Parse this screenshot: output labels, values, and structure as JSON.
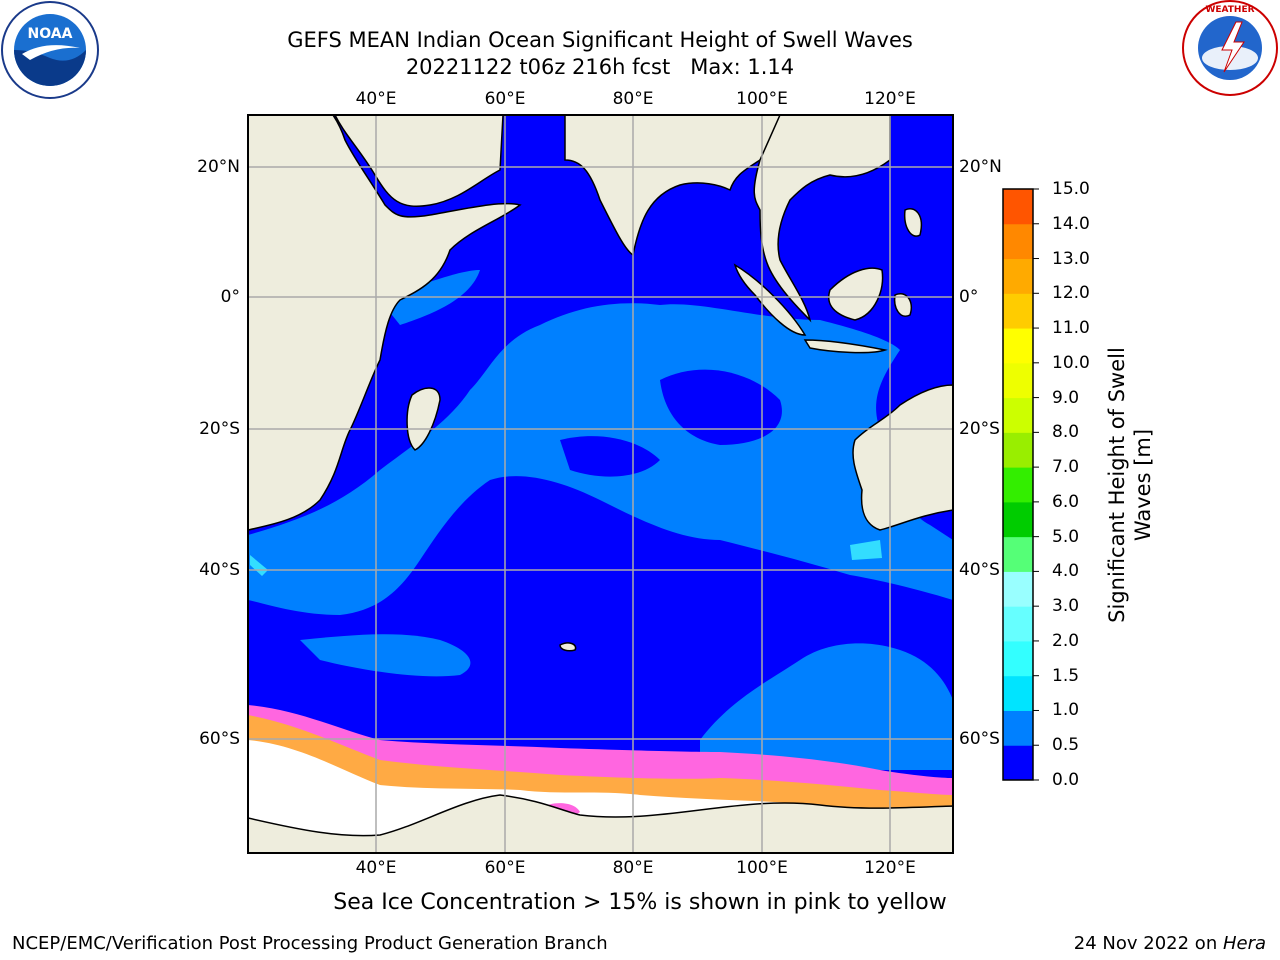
{
  "header": {
    "title_line1": "GEFS MEAN Indian Ocean Significant Height of Swell Waves",
    "title_line2": "20221122 t06z 216h fcst   Max: 1.14"
  },
  "logos": {
    "left": {
      "name": "NOAA",
      "ring_text": "NATIONAL OCEANIC AND ATMOSPHERIC ADMINISTRATION · U.S. DEPARTMENT OF COMMERCE"
    },
    "right": {
      "name": "NATIONAL WEATHER SERVICE"
    }
  },
  "map": {
    "lon_labels": [
      "40°E",
      "60°E",
      "80°E",
      "100°E",
      "120°E"
    ],
    "lat_labels": [
      "20°N",
      "0°",
      "20°S",
      "40°S",
      "60°S"
    ],
    "colors": {
      "land": "#eeeddd",
      "ocean_low": "#0000ff",
      "ocean_mid": "#0080ff",
      "ice_pink": "#ff66e0",
      "ice_orange": "#ffaa44",
      "ice_white": "#ffffff",
      "grid": "#aaaaaa"
    }
  },
  "colorbar": {
    "title_line1": "Significant Height of Swell",
    "title_line2": "Waves [m]",
    "ticks": [
      "15.0",
      "14.0",
      "13.0",
      "12.0",
      "11.0",
      "10.0",
      "9.0",
      "8.0",
      "7.0",
      "6.0",
      "5.0",
      "4.0",
      "3.0",
      "2.0",
      "1.5",
      "1.0",
      "0.5",
      "0.0"
    ],
    "bins_bottom_to_top": [
      "#0000ff",
      "#0080ff",
      "#00e4ff",
      "#33ffff",
      "#66ffff",
      "#99ffff",
      "#55ff77",
      "#00cc00",
      "#33ee00",
      "#99ee00",
      "#ccff00",
      "#eeff00",
      "#ffff00",
      "#ffcc00",
      "#ffaa00",
      "#ff8800",
      "#ff5500",
      "#ff2200",
      "#ff0000"
    ]
  },
  "caption": "Sea Ice Concentration > 15% is shown in pink to yellow",
  "footer": {
    "left": "NCEP/EMC/Verification Post Processing Product Generation Branch",
    "right_date": "24 Nov 2022 on ",
    "right_host": "Hera"
  }
}
